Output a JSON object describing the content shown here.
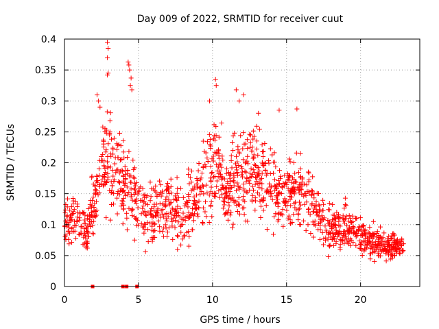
{
  "chart_data": {
    "type": "scatter",
    "title": "Day 009 of 2022, SRMTID for receiver cuut",
    "xlabel": "GPS time / hours",
    "ylabel": "SRMTID / TECUs",
    "xlim": [
      0,
      24
    ],
    "ylim": [
      0,
      0.4
    ],
    "xticks": [
      {
        "value": 0,
        "label": "0"
      },
      {
        "value": 5,
        "label": "5"
      },
      {
        "value": 10,
        "label": "10"
      },
      {
        "value": 15,
        "label": "15"
      },
      {
        "value": 20,
        "label": "20"
      }
    ],
    "yticks": [
      {
        "value": 0,
        "label": "0"
      },
      {
        "value": 0.05,
        "label": "0.05"
      },
      {
        "value": 0.1,
        "label": "0.1"
      },
      {
        "value": 0.15,
        "label": "0.15"
      },
      {
        "value": 0.2,
        "label": "0.2"
      },
      {
        "value": 0.25,
        "label": "0.25"
      },
      {
        "value": 0.3,
        "label": "0.3"
      },
      {
        "value": 0.35,
        "label": "0.35"
      },
      {
        "value": 0.4,
        "label": "0.4"
      }
    ],
    "grid": true,
    "marker": "plus",
    "series_color": "#ff0000",
    "envelope": {
      "x": [
        0.0,
        0.5,
        1.0,
        1.5,
        2.0,
        2.5,
        3.0,
        3.5,
        4.0,
        4.5,
        5.0,
        5.5,
        6.0,
        6.5,
        7.0,
        7.5,
        8.0,
        8.5,
        9.0,
        9.5,
        10.0,
        10.5,
        11.0,
        11.5,
        12.0,
        12.5,
        13.0,
        13.5,
        14.0,
        14.5,
        15.0,
        15.5,
        16.0,
        16.5,
        17.0,
        17.5,
        18.0,
        18.5,
        19.0,
        19.5,
        20.0,
        20.5,
        21.0,
        21.5,
        22.0,
        22.5,
        22.9
      ],
      "center": [
        0.095,
        0.11,
        0.105,
        0.09,
        0.14,
        0.19,
        0.2,
        0.19,
        0.17,
        0.15,
        0.13,
        0.12,
        0.11,
        0.12,
        0.13,
        0.12,
        0.11,
        0.13,
        0.15,
        0.17,
        0.19,
        0.19,
        0.16,
        0.17,
        0.19,
        0.19,
        0.19,
        0.17,
        0.16,
        0.14,
        0.15,
        0.16,
        0.16,
        0.14,
        0.12,
        0.1,
        0.09,
        0.09,
        0.1,
        0.09,
        0.08,
        0.075,
        0.07,
        0.065,
        0.065,
        0.065,
        0.06
      ],
      "spread": [
        0.03,
        0.035,
        0.035,
        0.03,
        0.05,
        0.06,
        0.08,
        0.07,
        0.06,
        0.07,
        0.05,
        0.05,
        0.04,
        0.045,
        0.045,
        0.045,
        0.045,
        0.05,
        0.05,
        0.055,
        0.065,
        0.06,
        0.055,
        0.06,
        0.065,
        0.06,
        0.055,
        0.06,
        0.055,
        0.05,
        0.05,
        0.05,
        0.05,
        0.045,
        0.04,
        0.035,
        0.035,
        0.035,
        0.035,
        0.03,
        0.025,
        0.025,
        0.025,
        0.02,
        0.02,
        0.02,
        0.02
      ]
    },
    "highlights": [
      {
        "x": 2.9,
        "y": 0.395
      },
      {
        "x": 2.95,
        "y": 0.385
      },
      {
        "x": 2.9,
        "y": 0.37
      },
      {
        "x": 2.95,
        "y": 0.345
      },
      {
        "x": 2.9,
        "y": 0.342
      },
      {
        "x": 4.3,
        "y": 0.363
      },
      {
        "x": 4.35,
        "y": 0.358
      },
      {
        "x": 4.4,
        "y": 0.35
      },
      {
        "x": 4.5,
        "y": 0.337
      },
      {
        "x": 4.45,
        "y": 0.325
      },
      {
        "x": 4.55,
        "y": 0.318
      },
      {
        "x": 2.2,
        "y": 0.31
      },
      {
        "x": 2.3,
        "y": 0.3
      },
      {
        "x": 2.4,
        "y": 0.29
      },
      {
        "x": 10.2,
        "y": 0.335
      },
      {
        "x": 10.25,
        "y": 0.325
      },
      {
        "x": 11.6,
        "y": 0.318
      },
      {
        "x": 12.1,
        "y": 0.31
      },
      {
        "x": 11.8,
        "y": 0.3
      },
      {
        "x": 9.8,
        "y": 0.3
      },
      {
        "x": 14.5,
        "y": 0.285
      },
      {
        "x": 15.7,
        "y": 0.287
      },
      {
        "x": 13.1,
        "y": 0.28
      }
    ],
    "zero_markers": [
      1.9,
      3.95,
      4.2,
      4.9
    ]
  }
}
